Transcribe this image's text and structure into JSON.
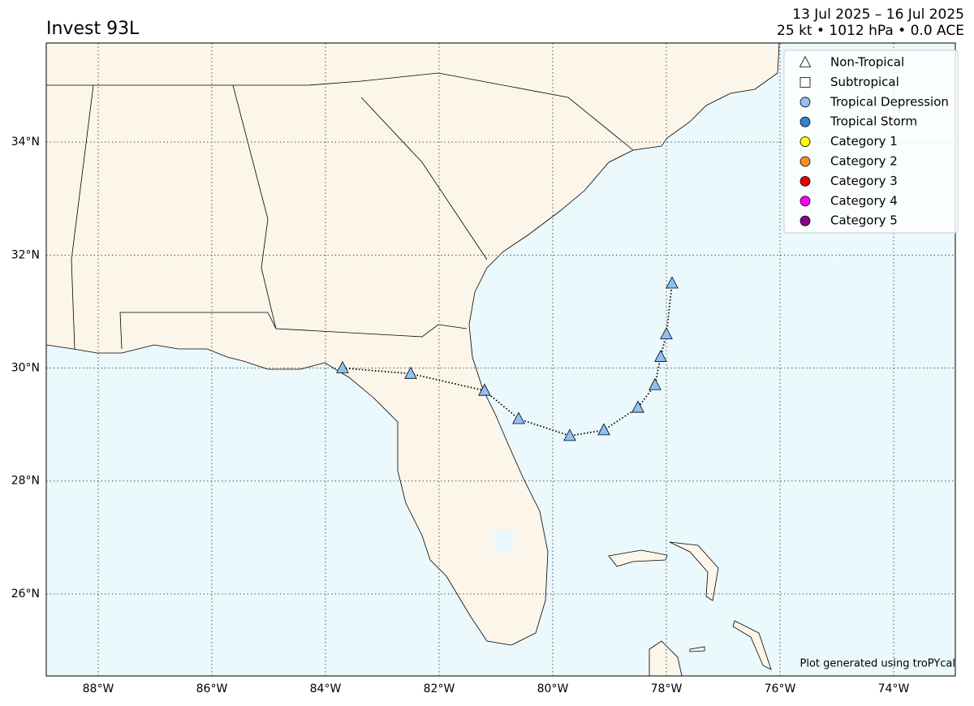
{
  "chart_data": {
    "type": "map",
    "title": "Invest 93L",
    "subtitle": [
      "13 Jul 2025 – 16 Jul 2025",
      "25 kt • 1012 hPa • 0.0 ACE"
    ],
    "footer": "Plot generated using troPYcal",
    "xlim": [
      -88.914,
      -72.914
    ],
    "ylim": [
      24.547,
      35.755
    ],
    "xticks": [
      {
        "value": -88,
        "label": "88°W"
      },
      {
        "value": -86,
        "label": "86°W"
      },
      {
        "value": -84,
        "label": "84°W"
      },
      {
        "value": -82,
        "label": "82°W"
      },
      {
        "value": -80,
        "label": "80°W"
      },
      {
        "value": -78,
        "label": "78°W"
      },
      {
        "value": -76,
        "label": "76°W"
      },
      {
        "value": -74,
        "label": "74°W"
      }
    ],
    "yticks": [
      {
        "value": 26,
        "label": "26°N"
      },
      {
        "value": 28,
        "label": "28°N"
      },
      {
        "value": 30,
        "label": "30°N"
      },
      {
        "value": 32,
        "label": "32°N"
      },
      {
        "value": 34,
        "label": "34°N"
      }
    ],
    "grid": true,
    "legend_position": "upper right",
    "legend": [
      {
        "name": "Non-Tropical",
        "marker": "triangle",
        "color": "#ffffff"
      },
      {
        "name": "Subtropical",
        "marker": "square",
        "color": "#ffffff"
      },
      {
        "name": "Tropical Depression",
        "marker": "circle",
        "color": "#8fc2f2"
      },
      {
        "name": "Tropical Storm",
        "marker": "circle",
        "color": "#3185d3"
      },
      {
        "name": "Category 1",
        "marker": "circle",
        "color": "#ffff00"
      },
      {
        "name": "Category 2",
        "marker": "circle",
        "color": "#ff8f20"
      },
      {
        "name": "Category 3",
        "marker": "circle",
        "color": "#eb0000"
      },
      {
        "name": "Category 4",
        "marker": "circle",
        "color": "#ff00ff"
      },
      {
        "name": "Category 5",
        "marker": "circle",
        "color": "#8b0088"
      }
    ],
    "series": [
      {
        "marker": "triangle",
        "color": "#8fc2f2",
        "x": [
          -83.7,
          -82.5,
          -81.2,
          -80.6,
          -79.7,
          -79.1,
          -78.5,
          -78.2,
          -78.1,
          -78.0,
          -77.9
        ],
        "y": [
          30.0,
          29.9,
          29.6,
          29.1,
          28.8,
          28.9,
          29.3,
          29.7,
          30.2,
          30.6,
          31.5
        ]
      }
    ]
  }
}
